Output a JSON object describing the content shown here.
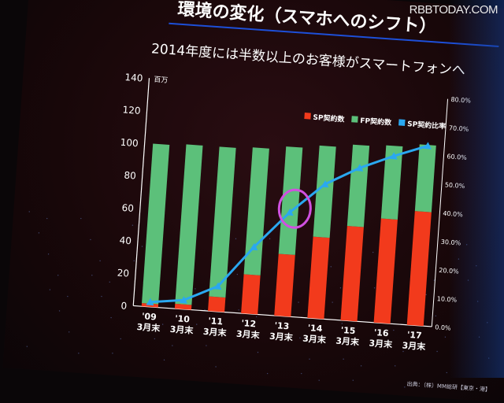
{
  "watermark": "RBBTODAY.COM",
  "slide": {
    "title": "環境の変化（スマホへのシフト）",
    "subtitle": "2014年度には半数以上のお客様がスマートフォンへ",
    "source": "出典：（株）MM総研【東京・港】"
  },
  "chart_data": {
    "type": "bar",
    "stacked": true,
    "categories": [
      "'09\n3月末",
      "'10\n3月末",
      "'11\n3月末",
      "'12\n3月末",
      "'13\n3月末",
      "'14\n3月末",
      "'15\n3月末",
      "'16\n3月末",
      "'17\n3月末"
    ],
    "category_years": [
      "'09",
      "'10",
      "'11",
      "'12",
      "'13",
      "'14",
      "'15",
      "'16",
      "'17"
    ],
    "category_suffix": "3月末",
    "y_unit": "百万",
    "ylim": [
      0,
      140
    ],
    "yticks": [
      0,
      20,
      40,
      60,
      80,
      100,
      120,
      140
    ],
    "y2lim": [
      0,
      80
    ],
    "y2ticks": [
      "0.0%",
      "10.0%",
      "20.0%",
      "30.0%",
      "40.0%",
      "50.0%",
      "60.0%",
      "70.0%",
      "80.0%"
    ],
    "legend_placement": "top-right",
    "series": [
      {
        "name": "SP契約数",
        "color": "#f23a1c",
        "values": [
          2,
          3,
          9,
          24,
          38,
          50,
          58,
          64,
          70
        ]
      },
      {
        "name": "FP契約数",
        "color": "#5cc07a",
        "values": [
          98,
          98,
          92,
          78,
          66,
          56,
          50,
          45,
          41
        ]
      },
      {
        "name": "SP契約比率",
        "color": "#2aa8f0",
        "axis": "right",
        "type": "line",
        "values": [
          1.7,
          3.2,
          8.9,
          23.5,
          36.5,
          47.2,
          53.7,
          58.7,
          63.1
        ]
      }
    ],
    "annotation": {
      "type": "circle",
      "color": "#d050e0",
      "category": "'13\n3月末"
    }
  }
}
